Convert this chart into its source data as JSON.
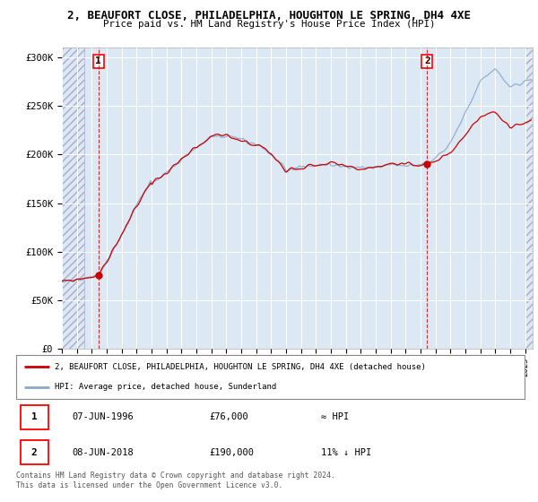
{
  "title1": "2, BEAUFORT CLOSE, PHILADELPHIA, HOUGHTON LE SPRING, DH4 4XE",
  "title2": "Price paid vs. HM Land Registry's House Price Index (HPI)",
  "ylabel_ticks": [
    "£0",
    "£50K",
    "£100K",
    "£150K",
    "£200K",
    "£250K",
    "£300K"
  ],
  "ytick_vals": [
    0,
    50000,
    100000,
    150000,
    200000,
    250000,
    300000
  ],
  "ylim": [
    0,
    310000
  ],
  "xlim_start": 1994.0,
  "xlim_end": 2025.5,
  "hatch_end": 1995.5,
  "sale1": {
    "year": 1996.44,
    "price": 76000,
    "label": "1"
  },
  "sale2": {
    "year": 2018.44,
    "price": 190000,
    "label": "2"
  },
  "legend_line1": "2, BEAUFORT CLOSE, PHILADELPHIA, HOUGHTON LE SPRING, DH4 4XE (detached house)",
  "legend_line2": "HPI: Average price, detached house, Sunderland",
  "annotation1_date": "07-JUN-1996",
  "annotation1_price": "£76,000",
  "annotation1_hpi": "≈ HPI",
  "annotation2_date": "08-JUN-2018",
  "annotation2_price": "£190,000",
  "annotation2_hpi": "11% ↓ HPI",
  "footnote": "Contains HM Land Registry data © Crown copyright and database right 2024.\nThis data is licensed under the Open Government Licence v3.0.",
  "red_color": "#cc0000",
  "blue_color": "#88aacc",
  "bg_color": "#ffffff",
  "plot_bg": "#dce9f5"
}
